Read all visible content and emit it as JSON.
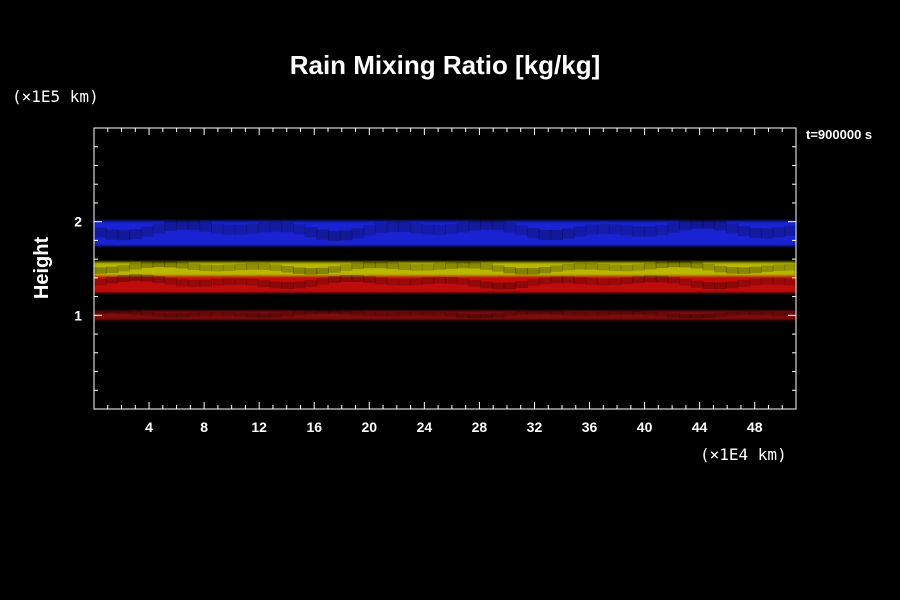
{
  "chart_data": {
    "type": "heatmap",
    "title": "Rain Mixing Ratio [kg/kg]",
    "xlabel": "",
    "ylabel": "Height",
    "x_unit": "(×1E4 km)",
    "y_unit": "(×1E5 km)",
    "time_label": "t=900000 s",
    "xlim": [
      0,
      51
    ],
    "ylim": [
      0,
      3
    ],
    "x_ticks": [
      4,
      8,
      12,
      16,
      20,
      24,
      28,
      32,
      36,
      40,
      44,
      48
    ],
    "x_tick_labels": [
      "4",
      "8",
      "12",
      "16",
      "20",
      "24",
      "28",
      "32",
      "36",
      "40",
      "44",
      "48"
    ],
    "y_ticks": [
      1,
      2
    ],
    "y_tick_labels": [
      "1",
      "2"
    ],
    "colors": {
      "background": "#000000",
      "frame": "#ffffff"
    },
    "layers": [
      {
        "color": "#1a28e6",
        "y_bottom": 1.74,
        "y_top": 2.01
      },
      {
        "color": "#c8c800",
        "y_bottom": 1.4,
        "y_top": 1.57
      },
      {
        "color": "#d01010",
        "y_bottom": 1.24,
        "y_top": 1.42
      },
      {
        "color": "#8a0e0e",
        "y_bottom": 0.95,
        "y_top": 1.05
      }
    ]
  }
}
